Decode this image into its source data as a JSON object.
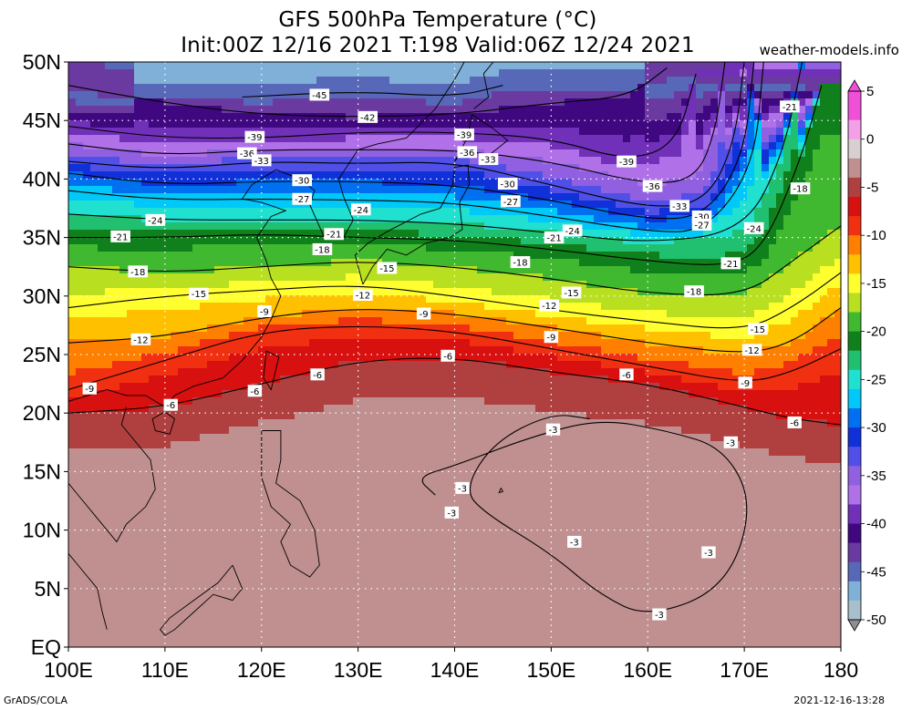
{
  "title": {
    "line1": "GFS 500hPa Temperature (°C)",
    "line2": "Init:00Z 12/16 2021 T:198 Valid:06Z 12/24 2021"
  },
  "source": "weather-models.info",
  "footer": {
    "left": "GrADS/COLA",
    "right": "2021-12-16-13:28"
  },
  "axes": {
    "lat_labels": [
      "50N",
      "45N",
      "40N",
      "35N",
      "30N",
      "25N",
      "20N",
      "15N",
      "10N",
      "5N",
      "EQ"
    ],
    "lat_values": [
      50,
      45,
      40,
      35,
      30,
      25,
      20,
      15,
      10,
      5,
      0
    ],
    "lon_labels": [
      "100E",
      "110E",
      "120E",
      "130E",
      "140E",
      "150E",
      "160E",
      "170E",
      "180"
    ],
    "lon_values": [
      100,
      110,
      120,
      130,
      140,
      150,
      160,
      170,
      180
    ],
    "lon_range": [
      100,
      180
    ],
    "lat_range": [
      0,
      50
    ],
    "gridlines": true
  },
  "colorbar": {
    "unit": "°C",
    "labels": [
      "5",
      "0",
      "-5",
      "-10",
      "-15",
      "-20",
      "-25",
      "-30",
      "-35",
      "-40",
      "-45",
      "-50"
    ],
    "range": [
      -50,
      5
    ],
    "stops": [
      {
        "t": 5,
        "color": "#f050d8"
      },
      {
        "t": 2,
        "color": "#f4a0e8"
      },
      {
        "t": 0,
        "color": "#d8d0d0"
      },
      {
        "t": -2,
        "color": "#c09090"
      },
      {
        "t": -4,
        "color": "#b04040"
      },
      {
        "t": -6,
        "color": "#d81010"
      },
      {
        "t": -8,
        "color": "#f03010"
      },
      {
        "t": -10,
        "color": "#ff8000"
      },
      {
        "t": -12,
        "color": "#ffc000"
      },
      {
        "t": -14,
        "color": "#ffff30"
      },
      {
        "t": -16,
        "color": "#b8e020"
      },
      {
        "t": -18,
        "color": "#40b830"
      },
      {
        "t": -20,
        "color": "#10801c"
      },
      {
        "t": -22,
        "color": "#20c070"
      },
      {
        "t": -24,
        "color": "#20e0d0"
      },
      {
        "t": -26,
        "color": "#00c8f8"
      },
      {
        "t": -28,
        "color": "#0070f0"
      },
      {
        "t": -30,
        "color": "#1030d8"
      },
      {
        "t": -32,
        "color": "#5050e8"
      },
      {
        "t": -34,
        "color": "#9060e0"
      },
      {
        "t": -36,
        "color": "#b070e8"
      },
      {
        "t": -38,
        "color": "#7030b8"
      },
      {
        "t": -40,
        "color": "#400880"
      },
      {
        "t": -42,
        "color": "#6a3aa0"
      },
      {
        "t": -44,
        "color": "#5868b8"
      },
      {
        "t": -46,
        "color": "#80b0d8"
      },
      {
        "t": -48,
        "color": "#a8c0cc"
      },
      {
        "t": -50,
        "color": "#909090"
      }
    ]
  },
  "contours": [
    {
      "value": -45,
      "label": "-45",
      "lons": [
        118,
        130,
        140,
        145
      ],
      "lats": [
        47,
        47.5,
        47,
        48
      ],
      "label_at": [
        126,
        47.2
      ]
    },
    {
      "value": -42,
      "label": "-42",
      "lons": [
        100,
        110,
        120,
        130,
        140,
        150,
        158,
        162
      ],
      "lats": [
        48,
        46.5,
        45.5,
        45.3,
        45.5,
        46.5,
        47,
        49.5
      ],
      "label_at": [
        131,
        45.3
      ]
    },
    {
      "value": -39,
      "label": "-39",
      "lons": [
        100,
        110,
        120,
        130,
        140,
        150,
        158,
        163,
        165
      ],
      "lats": [
        44.5,
        43.5,
        43.5,
        44,
        44,
        43.5,
        41.5,
        43,
        49
      ],
      "label_at": [
        119.5,
        43.5
      ]
    },
    {
      "value": -36,
      "label": "-36",
      "lons": [
        100,
        110,
        120,
        130,
        140,
        150,
        160,
        165,
        167,
        168
      ],
      "lats": [
        43,
        42,
        42.5,
        42.5,
        42.5,
        41.5,
        39.5,
        40,
        44,
        50
      ],
      "label_at": [
        119,
        42.2
      ]
    },
    {
      "value": -33,
      "label": "-33",
      "lons": [
        100,
        110,
        120,
        130,
        140,
        150,
        160,
        166,
        169,
        170
      ],
      "lats": [
        41.5,
        40.8,
        41.5,
        41.3,
        41.5,
        39.5,
        37.5,
        38,
        43,
        50
      ],
      "label_at": [
        120,
        41.5
      ]
    },
    {
      "value": -30,
      "label": "-30",
      "lons": [
        100,
        110,
        120,
        130,
        140,
        150,
        160,
        166,
        170,
        171
      ],
      "lats": [
        40.5,
        39.5,
        39.8,
        39.8,
        39.5,
        38.2,
        36.5,
        36.8,
        42,
        50
      ],
      "label_at": [
        124,
        39.8
      ]
    },
    {
      "value": -27,
      "label": "-27",
      "lons": [
        100,
        110,
        120,
        130,
        140,
        150,
        160,
        166,
        171,
        172
      ],
      "lats": [
        39,
        38.2,
        38.3,
        38.2,
        38,
        36.8,
        35.5,
        35.5,
        41,
        50
      ],
      "label_at": [
        124,
        38.2
      ]
    },
    {
      "value": -24,
      "label": "-24",
      "lons": [
        100,
        110,
        120,
        130,
        140,
        150,
        160,
        170,
        174,
        176
      ],
      "lats": [
        37,
        36.5,
        36.5,
        36.5,
        36.2,
        35.4,
        34.5,
        35.5,
        42,
        50
      ],
      "label_at": [
        109,
        36.4
      ]
    },
    {
      "value": -21,
      "label": "-21",
      "lons": [
        100,
        110,
        120,
        130,
        140,
        150,
        160,
        168,
        172,
        176,
        178
      ],
      "lats": [
        35,
        35,
        35.3,
        35,
        34.8,
        34,
        33,
        32.5,
        34,
        42,
        48
      ],
      "label_at": [
        105,
        35
      ]
    },
    {
      "value": -18,
      "label": "-18",
      "lons": [
        100,
        110,
        120,
        130,
        140,
        150,
        160,
        170,
        175,
        180
      ],
      "lats": [
        32.5,
        32,
        32.5,
        33,
        32.5,
        31.5,
        30.2,
        30,
        33,
        36
      ],
      "label_at": [
        107,
        32
      ]
    },
    {
      "value": -15,
      "label": "-15",
      "lons": [
        100,
        110,
        120,
        130,
        140,
        150,
        160,
        170,
        175,
        180
      ],
      "lats": [
        29,
        30,
        30.5,
        31,
        30,
        28.8,
        27.8,
        27,
        29,
        32
      ],
      "label_at": [
        113,
        30.2
      ]
    },
    {
      "value": -12,
      "label": "-12",
      "lons": [
        100,
        110,
        120,
        130,
        140,
        150,
        160,
        170,
        175,
        180
      ],
      "lats": [
        26,
        26.5,
        28.2,
        29,
        28.5,
        27.3,
        26,
        25,
        26,
        29
      ],
      "label_at": [
        107,
        26.3
      ]
    },
    {
      "value": -9,
      "label": "-9",
      "lons": [
        100,
        110,
        120,
        130,
        140,
        150,
        160,
        170,
        175,
        180
      ],
      "lats": [
        22,
        24.5,
        27,
        27.5,
        27,
        25.5,
        24,
        22.5,
        23.5,
        25.5
      ],
      "label_at": [
        102.2,
        22
      ]
    },
    {
      "value": -6,
      "label": "-6",
      "lons": [
        100,
        110,
        120,
        130,
        140,
        150,
        160,
        170,
        175,
        180
      ],
      "lats": [
        20,
        20.5,
        22.5,
        24.5,
        24.8,
        23.5,
        22.5,
        20.5,
        19.5,
        19
      ],
      "label_at": [
        110.5,
        20.6
      ]
    },
    {
      "value": -3,
      "label": "-3",
      "lons": [
        138,
        136,
        140,
        148,
        155,
        162,
        168,
        171,
        168,
        160,
        155,
        150,
        143,
        141,
        144,
        150,
        154
      ],
      "lats": [
        13,
        14.5,
        15.5,
        18,
        19.5,
        18.5,
        17,
        12,
        5,
        2.5,
        4.5,
        8,
        11.5,
        13.5,
        17.5,
        20,
        19.5
      ],
      "label_at": [
        152,
        18.5
      ]
    }
  ],
  "contour_labels": [
    {
      "text": "-45",
      "lon": 126,
      "lat": 47.2
    },
    {
      "text": "-42",
      "lon": 131,
      "lat": 45.3
    },
    {
      "text": "-39",
      "lon": 119.3,
      "lat": 43.6
    },
    {
      "text": "-39",
      "lon": 141,
      "lat": 43.8
    },
    {
      "text": "-39",
      "lon": 157.8,
      "lat": 41.5
    },
    {
      "text": "-36",
      "lon": 118.5,
      "lat": 42.2
    },
    {
      "text": "-36",
      "lon": 141.3,
      "lat": 42.3
    },
    {
      "text": "-36",
      "lon": 160.5,
      "lat": 39.4
    },
    {
      "text": "-33",
      "lon": 120,
      "lat": 41.6
    },
    {
      "text": "-33",
      "lon": 143.5,
      "lat": 41.7
    },
    {
      "text": "-33",
      "lon": 163.3,
      "lat": 37.7
    },
    {
      "text": "-30",
      "lon": 124.2,
      "lat": 39.9
    },
    {
      "text": "-30",
      "lon": 145.5,
      "lat": 39.6
    },
    {
      "text": "-30",
      "lon": 165.6,
      "lat": 36.8
    },
    {
      "text": "-27",
      "lon": 124.2,
      "lat": 38.3
    },
    {
      "text": "-27",
      "lon": 145.8,
      "lat": 38.1
    },
    {
      "text": "-27",
      "lon": 165.6,
      "lat": 36.1
    },
    {
      "text": "-24",
      "lon": 109,
      "lat": 36.5
    },
    {
      "text": "-24",
      "lon": 130.3,
      "lat": 37.4
    },
    {
      "text": "-24",
      "lon": 152.2,
      "lat": 35.6
    },
    {
      "text": "-24",
      "lon": 171,
      "lat": 35.8
    },
    {
      "text": "-21",
      "lon": 105.4,
      "lat": 35.1
    },
    {
      "text": "-21",
      "lon": 127.5,
      "lat": 35.3
    },
    {
      "text": "-21",
      "lon": 150.3,
      "lat": 35
    },
    {
      "text": "-21",
      "lon": 168.6,
      "lat": 32.8
    },
    {
      "text": "-21",
      "lon": 174.7,
      "lat": 46.2
    },
    {
      "text": "-18",
      "lon": 107.2,
      "lat": 32.1
    },
    {
      "text": "-18",
      "lon": 126.3,
      "lat": 34
    },
    {
      "text": "-18",
      "lon": 146.8,
      "lat": 32.9
    },
    {
      "text": "-18",
      "lon": 164.8,
      "lat": 30.4
    },
    {
      "text": "-18",
      "lon": 175.8,
      "lat": 39.2
    },
    {
      "text": "-15",
      "lon": 113.5,
      "lat": 30.2
    },
    {
      "text": "-15",
      "lon": 133,
      "lat": 32.4
    },
    {
      "text": "-15",
      "lon": 152.1,
      "lat": 30.3
    },
    {
      "text": "-15",
      "lon": 171.4,
      "lat": 27.2
    },
    {
      "text": "-12",
      "lon": 107.5,
      "lat": 26.3
    },
    {
      "text": "-12",
      "lon": 130.5,
      "lat": 30.1
    },
    {
      "text": "-12",
      "lon": 149.8,
      "lat": 29.2
    },
    {
      "text": "-12",
      "lon": 170.8,
      "lat": 25.4
    },
    {
      "text": "-9",
      "lon": 102.2,
      "lat": 22.1
    },
    {
      "text": "-9",
      "lon": 120.3,
      "lat": 28.7
    },
    {
      "text": "-9",
      "lon": 136.8,
      "lat": 28.5
    },
    {
      "text": "-9",
      "lon": 150,
      "lat": 26.5
    },
    {
      "text": "-9",
      "lon": 170.1,
      "lat": 22.6
    },
    {
      "text": "-6",
      "lon": 110.6,
      "lat": 20.7
    },
    {
      "text": "-6",
      "lon": 119.3,
      "lat": 21.9
    },
    {
      "text": "-6",
      "lon": 125.8,
      "lat": 23.3
    },
    {
      "text": "-6",
      "lon": 139.3,
      "lat": 24.9
    },
    {
      "text": "-6",
      "lon": 157.8,
      "lat": 23.3
    },
    {
      "text": "-6",
      "lon": 175.2,
      "lat": 19.2
    },
    {
      "text": "-3",
      "lon": 150.2,
      "lat": 18.6
    },
    {
      "text": "-3",
      "lon": 168.6,
      "lat": 17.5
    },
    {
      "text": "-3",
      "lon": 140.8,
      "lat": 13.6
    },
    {
      "text": "-3",
      "lon": 139.7,
      "lat": 11.5
    },
    {
      "text": "-3",
      "lon": 152.4,
      "lat": 9
    },
    {
      "text": "-3",
      "lon": 166.3,
      "lat": 8.1
    },
    {
      "text": "-3",
      "lon": 161.2,
      "lat": 2.8
    }
  ]
}
